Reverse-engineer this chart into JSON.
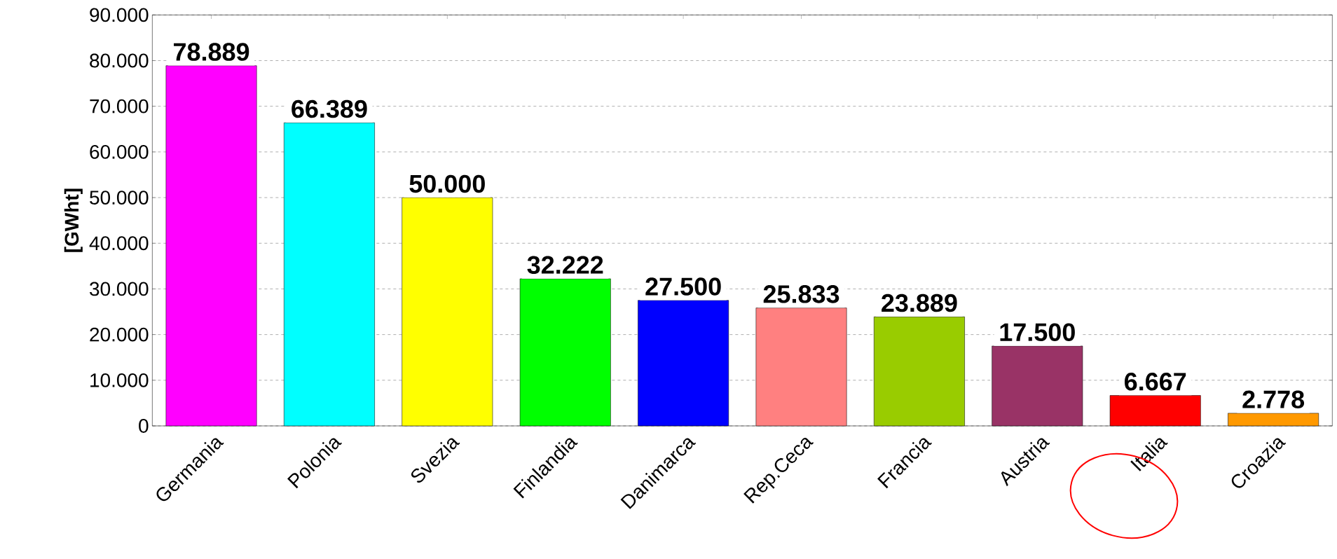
{
  "chart_data": {
    "type": "bar",
    "ylabel": "[GWht]",
    "categories": [
      "Germania",
      "Polonia",
      "Svezia",
      "Finlandia",
      "Danimarca",
      "Rep.Ceca",
      "Francia",
      "Austria",
      "Italia",
      "Croazia"
    ],
    "values": [
      78889,
      66389,
      50000,
      32222,
      27500,
      25833,
      23889,
      17500,
      6667,
      2778
    ],
    "value_labels": [
      "78.889",
      "66.389",
      "50.000",
      "32.222",
      "27.500",
      "25.833",
      "23.889",
      "17.500",
      "6.667",
      "2.778"
    ],
    "colors": [
      "#ff00ff",
      "#00ffff",
      "#ffff00",
      "#00ff00",
      "#0000ff",
      "#ff8080",
      "#99cc00",
      "#993366",
      "#ff0000",
      "#ff9900"
    ],
    "ylim": [
      0,
      90000
    ],
    "yticks": [
      {
        "value": 0,
        "label": "0"
      },
      {
        "value": 10000,
        "label": "10.000"
      },
      {
        "value": 20000,
        "label": "20.000"
      },
      {
        "value": 30000,
        "label": "30.000"
      },
      {
        "value": 40000,
        "label": "40.000"
      },
      {
        "value": 50000,
        "label": "50.000"
      },
      {
        "value": 60000,
        "label": "60.000"
      },
      {
        "value": 70000,
        "label": "70.000"
      },
      {
        "value": 80000,
        "label": "80.000"
      },
      {
        "value": 90000,
        "label": "90.000"
      }
    ],
    "grid": "y"
  }
}
